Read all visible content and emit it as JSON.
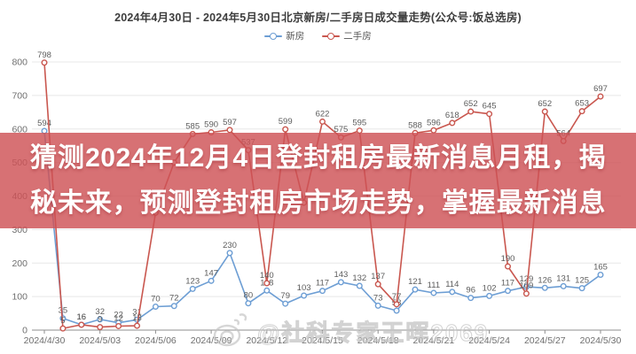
{
  "header": {
    "title": "2024年4月30日 - 2024年5月30日北京新房/二手房日成交量走势(公众号:饭总选房)"
  },
  "legend": {
    "items": [
      {
        "label": "新房",
        "color": "#6d9ed4"
      },
      {
        "label": "二手房",
        "color": "#c9574f"
      }
    ]
  },
  "banner": {
    "line1": "猜测2024年12月4日登封租房最新消息月租，揭",
    "line2": "秘未来，预测登封租房市场走势，掌握最新消息",
    "bg_color": "#ce5256",
    "text_color": "#ffffff"
  },
  "watermark": {
    "text": "@社科专家王晖2069"
  },
  "chart_data": {
    "type": "line",
    "title": "2024年4月30日 - 2024年5月30日北京新房/二手房日成交量走势(公众号:饭总选房)",
    "xlabel": "",
    "ylabel": "",
    "ylim": [
      0,
      800
    ],
    "yticks": [
      0,
      100,
      200,
      300,
      400,
      500,
      600,
      700,
      800
    ],
    "grid": true,
    "legend_position": "top",
    "x": [
      "2024/4/30",
      "2024/5/01",
      "2024/5/02",
      "2024/5/03",
      "2024/5/04",
      "2024/5/05",
      "2024/5/06",
      "2024/5/07",
      "2024/5/08",
      "2024/5/09",
      "2024/5/10",
      "2024/5/11",
      "2024/5/12",
      "2024/5/13",
      "2024/5/14",
      "2024/5/15",
      "2024/5/16",
      "2024/5/17",
      "2024/5/18",
      "2024/5/19",
      "2024/5/20",
      "2024/5/21",
      "2024/5/22",
      "2024/5/23",
      "2024/5/24",
      "2024/5/25",
      "2024/5/26",
      "2024/5/27",
      "2024/5/28",
      "2024/5/29",
      "2024/5/30"
    ],
    "x_tick_label_indices": [
      0,
      3,
      6,
      9,
      12,
      15,
      18,
      21,
      24,
      27,
      30
    ],
    "series": [
      {
        "name": "新房",
        "color": "#6d9ed4",
        "values": [
          594,
          35,
          16,
          32,
          22,
          31,
          70,
          72,
          123,
          147,
          230,
          80,
          118,
          79,
          103,
          117,
          143,
          132,
          73,
          58,
          121,
          111,
          114,
          96,
          102,
          117,
          129,
          126,
          131,
          125,
          165
        ],
        "hidden_label_indices": []
      },
      {
        "name": "二手房",
        "color": "#c9574f",
        "values": [
          798,
          5,
          16,
          9,
          12,
          13,
          350,
          500,
          585,
          590,
          597,
          537,
          140,
          599,
          380,
          622,
          575,
          595,
          137,
          77,
          588,
          596,
          618,
          652,
          645,
          190,
          109,
          652,
          564,
          653,
          697
        ],
        "hidden_label_indices": [
          6,
          7,
          14
        ],
        "note": "values at indices 6,7,14 are obscured by the overlay banner in the source image and are estimates"
      }
    ]
  }
}
